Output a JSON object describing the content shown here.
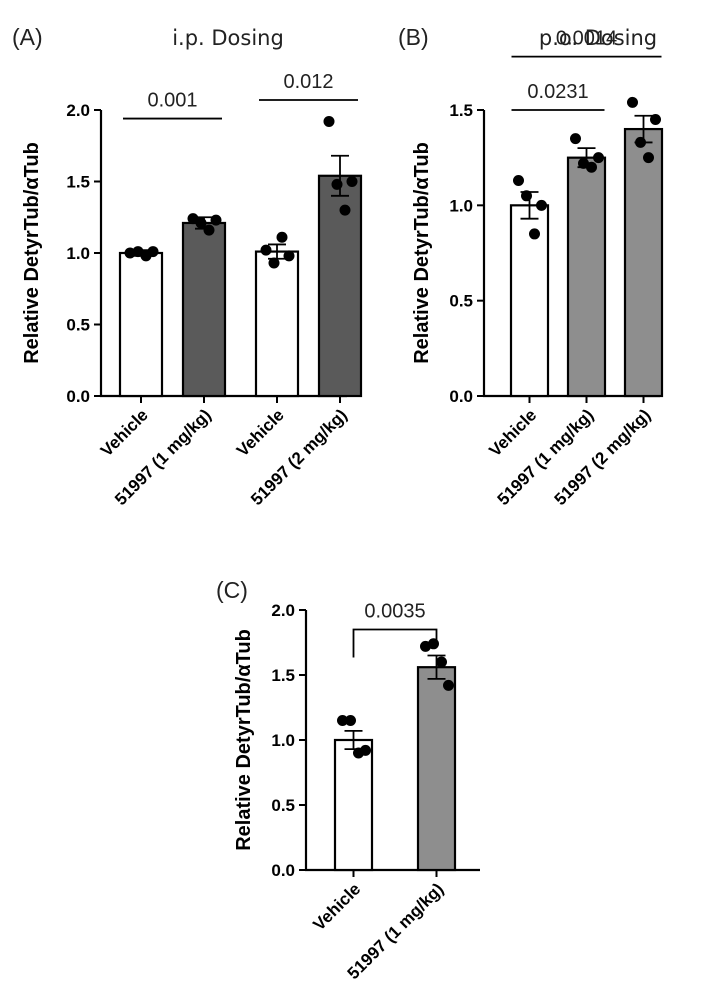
{
  "figure": {
    "colors": {
      "white_bar": "#ffffff",
      "dark_bar": "#5a5a5a",
      "grey_bar": "#8e8e8e",
      "axis": "#000000",
      "dot": "#000000"
    }
  },
  "chart_data": [
    {
      "panel": "(A)",
      "title": "i.p. Dosing",
      "type": "bar",
      "ylabel": "Relative DetyrTub/αTub",
      "ylim": [
        0,
        2.0
      ],
      "yticks": [
        "0.0",
        "0.5",
        "1.0",
        "1.5",
        "2.0"
      ],
      "categories": [
        "Vehicle",
        "51997 (1 mg/kg)",
        "Vehicle",
        "51997 (2 mg/kg)"
      ],
      "values": [
        1.0,
        1.21,
        1.01,
        1.54
      ],
      "sem": [
        0.02,
        0.04,
        0.05,
        0.14
      ],
      "bar_colors": [
        "#ffffff",
        "#5a5a5a",
        "#ffffff",
        "#5a5a5a"
      ],
      "points": [
        [
          1.0,
          1.01,
          0.98,
          1.01
        ],
        [
          1.24,
          1.21,
          1.16,
          1.23
        ],
        [
          1.02,
          0.93,
          1.11,
          0.98
        ],
        [
          1.92,
          1.48,
          1.3,
          1.5
        ]
      ],
      "comparisons": [
        {
          "from": 0,
          "to": 1,
          "label": "0.001",
          "y": 1.94,
          "style": "line"
        },
        {
          "from": 2,
          "to": 3,
          "label": "0.012",
          "y": 2.07,
          "style": "line"
        }
      ],
      "grid": false
    },
    {
      "panel": "(B)",
      "title": "p.o. Dosing",
      "type": "bar",
      "ylabel": "Relative DetyrTub/αTub",
      "ylim": [
        0,
        1.5
      ],
      "yticks": [
        "0.0",
        "0.5",
        "1.0",
        "1.5"
      ],
      "categories": [
        "Vehicle",
        "51997 (1 mg/kg)",
        "51997 (2 mg/kg)"
      ],
      "values": [
        1.0,
        1.25,
        1.4
      ],
      "sem": [
        0.07,
        0.05,
        0.07
      ],
      "bar_colors": [
        "#ffffff",
        "#8e8e8e",
        "#8e8e8e"
      ],
      "points": [
        [
          1.13,
          1.05,
          0.85,
          1.0
        ],
        [
          1.35,
          1.22,
          1.2,
          1.25
        ],
        [
          1.54,
          1.33,
          1.25,
          1.45
        ]
      ],
      "comparisons": [
        {
          "from": 0,
          "to": 1,
          "label": "0.0231",
          "y": 1.5,
          "style": "line"
        },
        {
          "from": 0,
          "to": 2,
          "label": "0.0014",
          "y": 1.78,
          "style": "line"
        }
      ],
      "grid": false
    },
    {
      "panel": "(C)",
      "title": "",
      "type": "bar",
      "ylabel": "Relative DetyrTub/αTub",
      "ylim": [
        0,
        2.0
      ],
      "yticks": [
        "0.0",
        "0.5",
        "1.0",
        "1.5",
        "2.0"
      ],
      "categories": [
        "Vehicle",
        "51997 (1 mg/kg)"
      ],
      "values": [
        1.0,
        1.56
      ],
      "sem": [
        0.07,
        0.09
      ],
      "bar_colors": [
        "#ffffff",
        "#8e8e8e"
      ],
      "points": [
        [
          1.15,
          1.15,
          0.9,
          0.92
        ],
        [
          1.72,
          1.74,
          1.6,
          1.42
        ]
      ],
      "comparisons": [
        {
          "from": 0,
          "to": 1,
          "label": "0.0035",
          "y": 1.85,
          "style": "bracket"
        }
      ],
      "grid": false
    }
  ]
}
